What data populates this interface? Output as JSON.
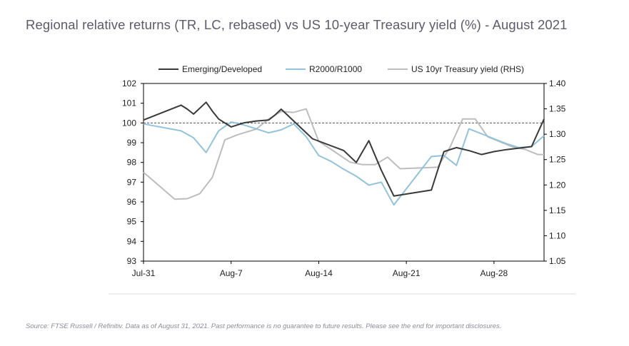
{
  "title": "Regional relative returns (TR, LC, rebased) vs US 10-year Treasury yield (%) - August 2021",
  "source": "Source: FTSE Russell / Refinitiv. Data as of August 31, 2021. Past performance is no guarantee to future results. Please see the end for important disclosures.",
  "colors": {
    "emerging_developed": "#3a3a3a",
    "r2000_r1000": "#92c3dc",
    "us10yr": "#bdbdbd",
    "reference_line": "#555555",
    "bottom_rule": "#dddddd"
  },
  "chart_data": {
    "type": "line",
    "x_tick_labels": [
      "Jul-31",
      "Aug-7",
      "Aug-14",
      "Aug-21",
      "Aug-28"
    ],
    "x_tick_days": [
      0,
      7,
      14,
      21,
      28
    ],
    "xlim": [
      0,
      32
    ],
    "left_axis": {
      "ylim": [
        93,
        102
      ],
      "ticks": [
        93,
        94,
        95,
        96,
        97,
        98,
        99,
        100,
        101,
        102
      ],
      "tick_labels": [
        "93",
        "94",
        "95",
        "96",
        "97",
        "98",
        "99",
        "100",
        "101",
        "102"
      ]
    },
    "right_axis": {
      "ylim": [
        1.05,
        1.4
      ],
      "ticks": [
        1.05,
        1.1,
        1.15,
        1.2,
        1.25,
        1.3,
        1.35,
        1.4
      ],
      "tick_labels": [
        "1.05",
        "1.10",
        "1.15",
        "1.20",
        "1.25",
        "1.30",
        "1.35",
        "1.40"
      ]
    },
    "reference_line": 100,
    "legend_position": "top",
    "series": [
      {
        "name": "Emerging/Developed",
        "axis": "left",
        "x": [
          0,
          3,
          3.5,
          4,
          5,
          5.5,
          6,
          7,
          8,
          9,
          10,
          10.5,
          11,
          13.5,
          16,
          17,
          18,
          19,
          20,
          23,
          23.5,
          24,
          25,
          26,
          27,
          28,
          29,
          31,
          32
        ],
        "y": [
          100.15,
          100.9,
          100.7,
          100.45,
          101.05,
          100.6,
          100.2,
          99.8,
          100.0,
          100.1,
          100.15,
          100.4,
          100.7,
          99.2,
          98.6,
          98.0,
          99.1,
          97.6,
          96.3,
          96.6,
          97.6,
          98.55,
          98.75,
          98.6,
          98.4,
          98.55,
          98.65,
          98.8,
          100.2
        ]
      },
      {
        "name": "R2000/R1000",
        "axis": "left",
        "x": [
          0,
          3,
          4,
          5,
          6,
          7,
          8,
          9,
          10,
          11,
          12,
          13,
          14,
          15,
          16,
          17,
          18,
          19,
          20,
          23,
          24,
          25,
          26,
          27,
          28,
          29,
          30,
          31,
          32
        ],
        "y": [
          99.95,
          99.6,
          99.25,
          98.5,
          99.6,
          100.05,
          99.9,
          99.7,
          99.5,
          99.65,
          99.95,
          99.3,
          98.35,
          98.05,
          97.65,
          97.3,
          96.85,
          97.0,
          95.85,
          98.3,
          98.35,
          97.85,
          99.7,
          99.45,
          99.2,
          98.95,
          98.75,
          98.8,
          99.35
        ]
      },
      {
        "name": "US 10yr Treasury yield (RHS)",
        "axis": "right",
        "x": [
          0,
          2.5,
          3.5,
          4.5,
          5.5,
          6.5,
          7.5,
          9,
          10,
          11,
          12,
          13,
          14,
          15,
          16.5,
          17.5,
          18.5,
          19.5,
          20.5,
          23.5,
          24.5,
          25.5,
          26.5,
          27.5,
          28.5,
          29.5,
          30.5,
          31.5,
          32
        ],
        "y": [
          1.225,
          1.172,
          1.173,
          1.183,
          1.215,
          1.289,
          1.299,
          1.31,
          1.33,
          1.345,
          1.343,
          1.35,
          1.286,
          1.27,
          1.245,
          1.24,
          1.24,
          1.255,
          1.232,
          1.235,
          1.275,
          1.33,
          1.33,
          1.295,
          1.285,
          1.275,
          1.27,
          1.26,
          1.26
        ]
      }
    ]
  }
}
